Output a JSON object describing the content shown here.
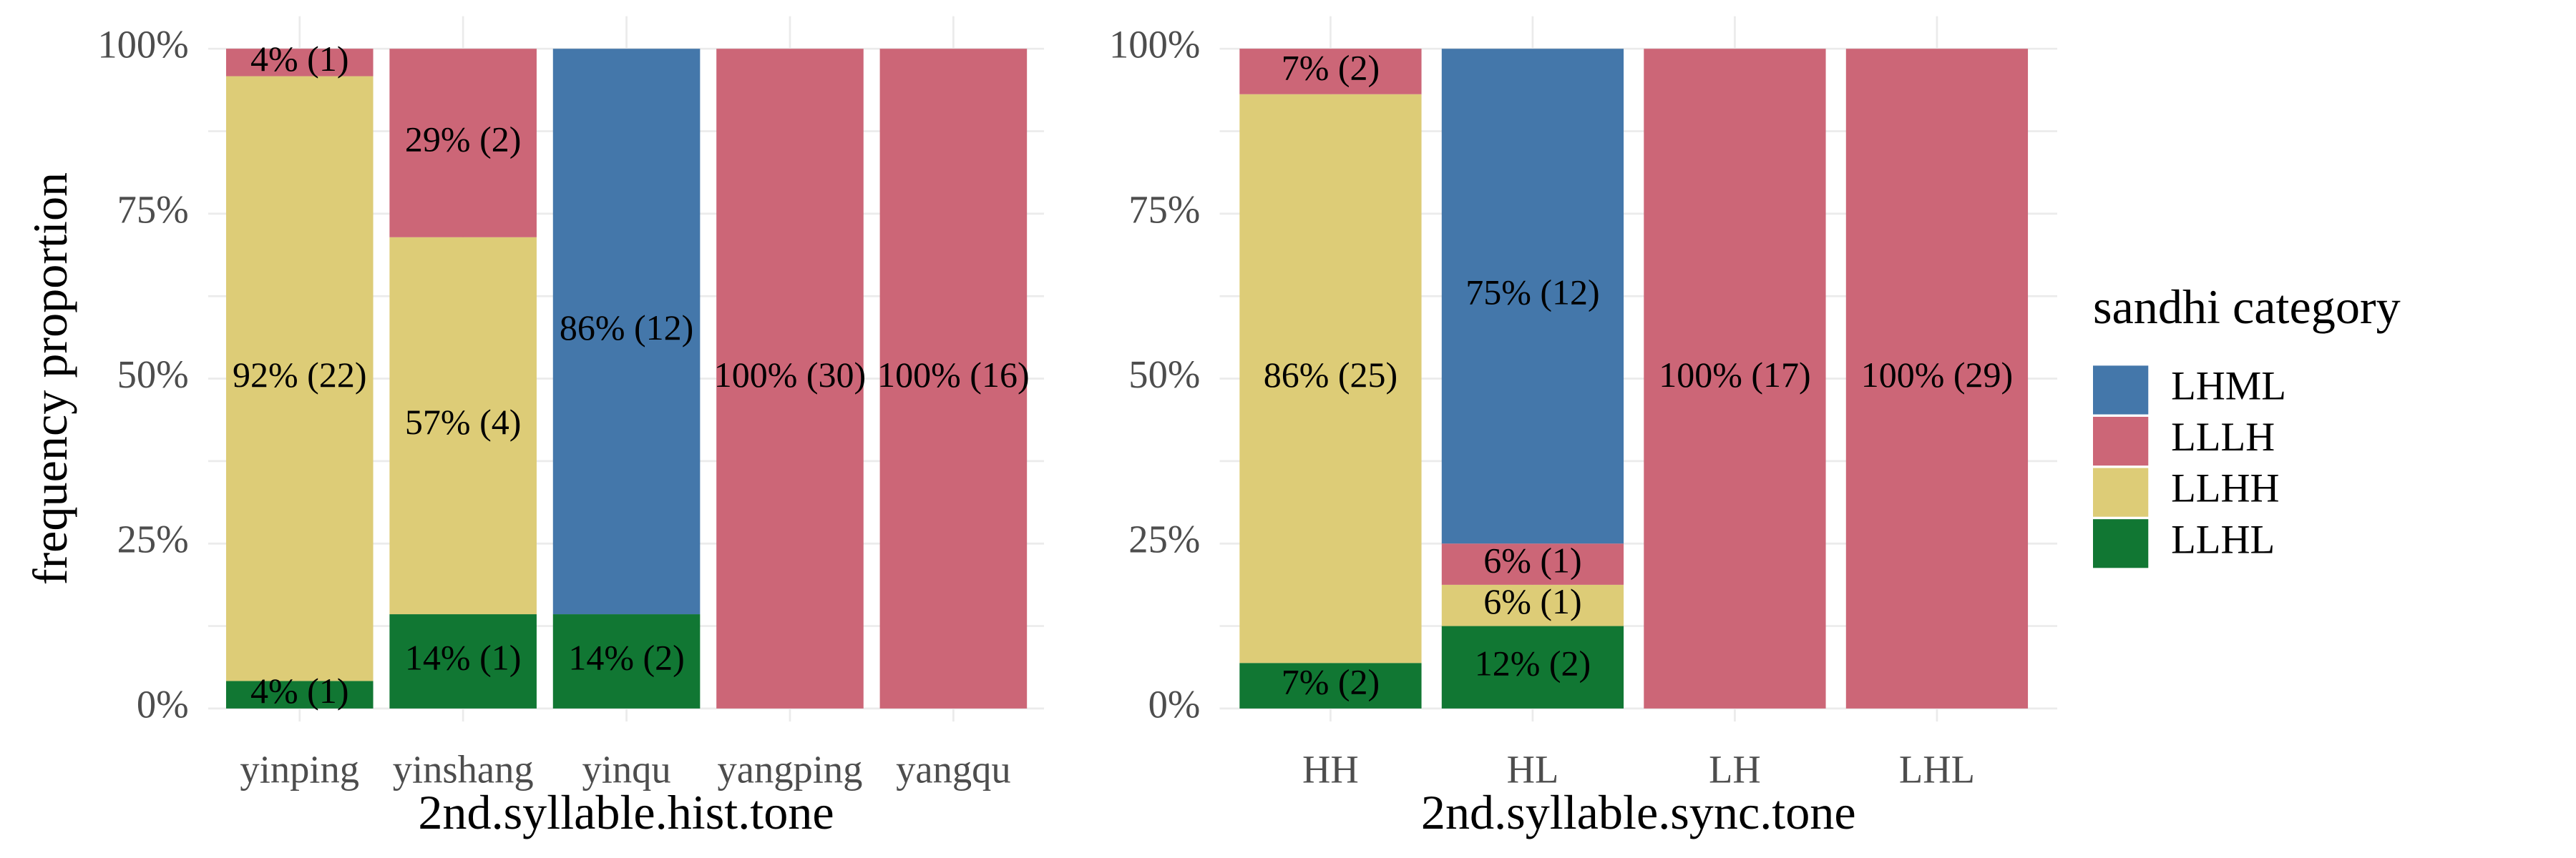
{
  "chart_data": [
    {
      "type": "bar",
      "stacked": true,
      "y_label": "frequency proportion",
      "x_label": "2nd.syllable.hist.tone",
      "categories": [
        "yinping",
        "yinshang",
        "yinqu",
        "yangping",
        "yangqu"
      ],
      "series": [
        {
          "color": "#117733",
          "values": [
            4.17,
            14.29,
            14.29,
            null,
            null
          ],
          "value_labels": [
            "4% (1)",
            "14% (1)",
            "14% (2)",
            null,
            null
          ]
        },
        {
          "color": "#DDCC77",
          "values": [
            91.67,
            57.14,
            null,
            null,
            null
          ],
          "value_labels": [
            "92% (22)",
            "57% (4)",
            null,
            null,
            null
          ]
        },
        {
          "color": "#CC6677",
          "values": [
            4.17,
            28.57,
            null,
            100,
            100
          ],
          "value_labels": [
            "4% (1)",
            "29% (2)",
            null,
            "100% (30)",
            "100% (16)"
          ]
        },
        {
          "color": "#4477AA",
          "values": [
            null,
            null,
            85.71,
            null,
            null
          ],
          "value_labels": [
            null,
            null,
            "86% (12)",
            null,
            null
          ]
        }
      ],
      "ylim": [
        0,
        100
      ],
      "yticks": [
        {
          "value": 0,
          "label": "0%"
        },
        {
          "value": 25,
          "label": "25%"
        },
        {
          "value": 50,
          "label": "50%"
        },
        {
          "value": 75,
          "label": "75%"
        },
        {
          "value": 100,
          "label": "100%"
        }
      ],
      "grid": true
    },
    {
      "type": "bar",
      "stacked": true,
      "x_label": "2nd.syllable.sync.tone",
      "categories": [
        "HH",
        "HL",
        "LH",
        "LHL"
      ],
      "legend_title": "sandhi category",
      "series": [
        {
          "name": "LLHL",
          "color": "#117733",
          "values": [
            6.9,
            12.5,
            null,
            null
          ],
          "value_labels": [
            "7% (2)",
            "12% (2)",
            null,
            null
          ]
        },
        {
          "name": "LLHH",
          "color": "#DDCC77",
          "values": [
            86.21,
            6.25,
            null,
            null
          ],
          "value_labels": [
            "86% (25)",
            "6% (1)",
            null,
            null
          ]
        },
        {
          "name": "LLLH",
          "color": "#CC6677",
          "values": [
            6.9,
            6.25,
            100,
            100
          ],
          "value_labels": [
            "7% (2)",
            "6% (1)",
            "100% (17)",
            "100% (29)"
          ]
        },
        {
          "name": "LHML",
          "color": "#4477AA",
          "values": [
            null,
            75,
            null,
            null
          ],
          "value_labels": [
            null,
            "75% (12)",
            null,
            null
          ]
        }
      ],
      "ylim": [
        0,
        100
      ],
      "yticks": [
        {
          "value": 0,
          "label": "0%"
        },
        {
          "value": 25,
          "label": "25%"
        },
        {
          "value": 50,
          "label": "50%"
        },
        {
          "value": 75,
          "label": "75%"
        },
        {
          "value": 100,
          "label": "100%"
        }
      ],
      "grid": true
    }
  ]
}
